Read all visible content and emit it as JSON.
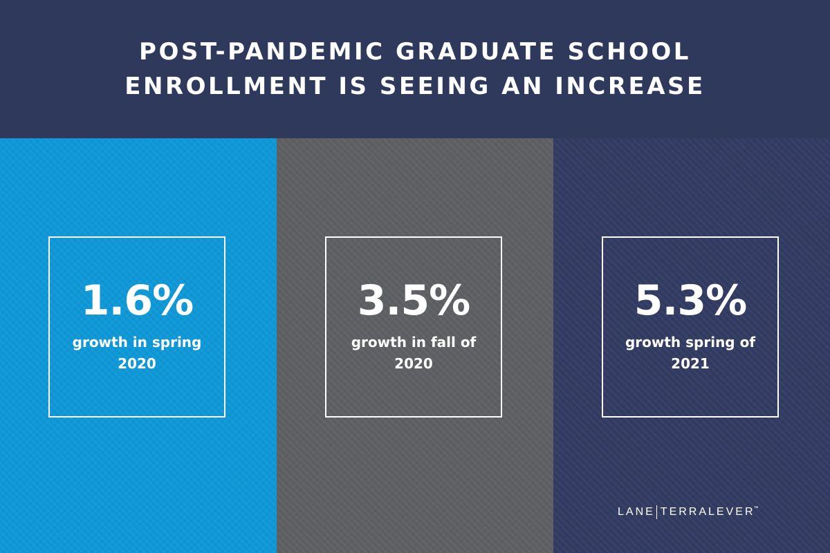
{
  "header": {
    "title_line1": "POST-PANDEMIC GRADUATE SCHOOL",
    "title_line2": "ENROLLMENT IS SEEING AN INCREASE",
    "background": "#2e395c"
  },
  "stats": [
    {
      "value": "1.6%",
      "description": "growth in spring 2020",
      "background": "#0f98d7"
    },
    {
      "value": "3.5%",
      "description": "growth in fall of 2020",
      "background": "#5e5f63"
    },
    {
      "value": "5.3%",
      "description": "growth spring of 2021",
      "background": "#323b61"
    }
  ],
  "logo": {
    "left": "LANE",
    "right": "TERRALEVER",
    "trademark": "™"
  }
}
